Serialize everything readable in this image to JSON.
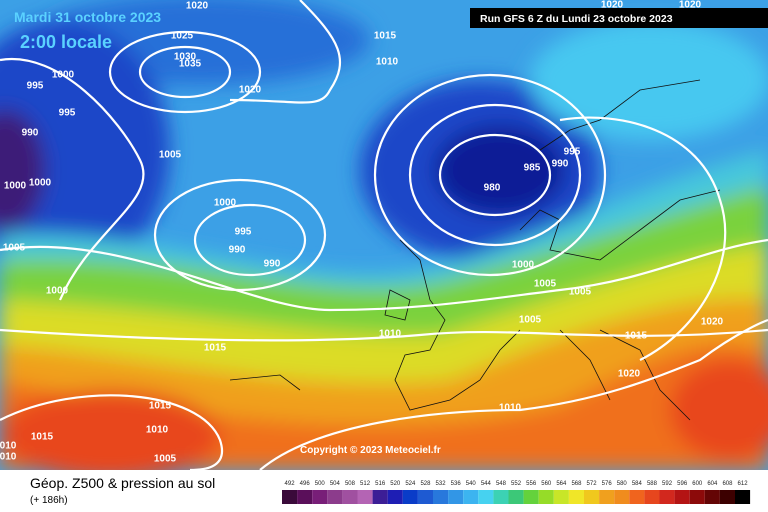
{
  "header": {
    "date": "Mardi 31 octobre 2023",
    "time": "2:00 locale",
    "run": "Run GFS 6 Z du Lundi 23 octobre 2023",
    "copyright": "Copyright © 2023 Meteociel.fr"
  },
  "footer": {
    "title": "Géop. Z500 & pression au sol",
    "lead": "(+ 186h)"
  },
  "isobar_labels": [
    1020,
    1025,
    1030,
    1035,
    1020,
    1015,
    1010,
    1000,
    995,
    995,
    990,
    1005,
    1000,
    1000,
    1000,
    995,
    990,
    990,
    1005,
    1000,
    985,
    990,
    995,
    980,
    1000,
    1005,
    1005,
    1005,
    1010,
    1015,
    1015,
    1020,
    1020,
    1010,
    1015,
    1010,
    1015,
    1005,
    "010",
    "010",
    1020,
    1020
  ],
  "scale": {
    "levels": [
      492,
      496,
      500,
      504,
      508,
      512,
      516,
      520,
      524,
      528,
      532,
      536,
      540,
      544,
      548,
      552,
      556,
      560,
      564,
      568,
      572,
      576,
      580,
      584,
      588,
      592,
      596,
      600,
      604,
      608,
      612
    ],
    "colors": [
      "#3a0a3a",
      "#5a0f5a",
      "#781e78",
      "#8c3c8c",
      "#a050a0",
      "#b464b4",
      "#3c1e96",
      "#1e1eb4",
      "#0a3cc8",
      "#1e5ad2",
      "#2878dc",
      "#3296e6",
      "#3cb4f0",
      "#46d2f0",
      "#3cd2b4",
      "#3cc878",
      "#64d23c",
      "#96dc28",
      "#c8e628",
      "#f0e628",
      "#f0c81e",
      "#f0a01e",
      "#f08c1e",
      "#f0641e",
      "#e6461e",
      "#d2281e",
      "#b41414",
      "#8c0a0a",
      "#640505",
      "#3c0000",
      "#000000"
    ]
  }
}
